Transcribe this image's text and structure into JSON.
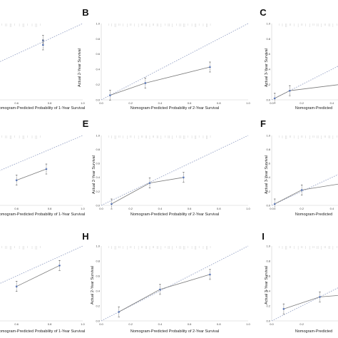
{
  "figure": {
    "background": "#ffffff",
    "colors": {
      "reference": "#5b78b8",
      "calibration": "#7a7a7a",
      "point": "#444444",
      "ideal": "#9aa6c8"
    }
  },
  "chart_data": [
    {
      "id": "A",
      "letter": "",
      "type": "scatter",
      "xlabel": "Nomogram-Predicted Probability of 1-Year Survival",
      "ylabel": "",
      "xlim": [
        0,
        1
      ],
      "ylim": [
        0,
        1
      ],
      "x_ticks": [
        0.6,
        0.8,
        1.0
      ],
      "points": [
        {
          "x": 0.76,
          "y": 0.78
        },
        {
          "x": 0.76,
          "y": 0.72
        }
      ],
      "curve": [
        {
          "x": 0.76,
          "y": 0.78
        },
        {
          "x": 0.76,
          "y": 0.72
        }
      ]
    },
    {
      "id": "B",
      "letter": "B",
      "type": "scatter",
      "xlabel": "Nomogram-Predicted Probability of 2-Year Survival",
      "ylabel": "Actual 2-Year Survival",
      "xlim": [
        0,
        1
      ],
      "ylim": [
        0,
        1
      ],
      "x_ticks": [
        0.0,
        0.2,
        0.4,
        0.6,
        0.8,
        1.0
      ],
      "y_ticks": [
        0.0,
        0.2,
        0.4,
        0.6,
        0.8,
        1.0
      ],
      "points": [
        {
          "x": 0.06,
          "y": 0.06
        },
        {
          "x": 0.3,
          "y": 0.22
        },
        {
          "x": 0.74,
          "y": 0.43
        }
      ],
      "curve": [
        {
          "x": 0.06,
          "y": 0.06
        },
        {
          "x": 0.3,
          "y": 0.22
        },
        {
          "x": 0.74,
          "y": 0.43
        }
      ]
    },
    {
      "id": "C",
      "letter": "C",
      "type": "scatter",
      "xlabel": "Nomogram-Predicted",
      "ylabel": "Actual 3-Year Survival",
      "xlim": [
        0,
        1
      ],
      "ylim": [
        0,
        1
      ],
      "x_ticks": [
        0.0,
        0.2,
        0.4
      ],
      "y_ticks": [
        0.0,
        0.2,
        0.4,
        0.6,
        0.8,
        1.0
      ],
      "points": [
        {
          "x": 0.02,
          "y": 0.02
        },
        {
          "x": 0.12,
          "y": 0.12
        },
        {
          "x": 0.45,
          "y": 0.2
        }
      ],
      "curve": [
        {
          "x": 0.02,
          "y": 0.02
        },
        {
          "x": 0.12,
          "y": 0.12
        },
        {
          "x": 0.45,
          "y": 0.2
        }
      ]
    },
    {
      "id": "D",
      "letter": "",
      "type": "scatter",
      "xlabel": "Nomogram-Predicted Probability of 1-Year Survival",
      "ylabel": "",
      "xlim": [
        0,
        1
      ],
      "ylim": [
        0,
        1
      ],
      "x_ticks": [
        0.6,
        0.8,
        1.0
      ],
      "points": [
        {
          "x": 0.6,
          "y": 0.36
        },
        {
          "x": 0.78,
          "y": 0.52
        }
      ],
      "curve": [
        {
          "x": 0.6,
          "y": 0.36
        },
        {
          "x": 0.78,
          "y": 0.52
        }
      ]
    },
    {
      "id": "E",
      "letter": "E",
      "type": "scatter",
      "xlabel": "Nomogram-Predicted Probability of 2-Year Survival",
      "ylabel": "Actual 2-Year Survival",
      "xlim": [
        0,
        1
      ],
      "ylim": [
        0,
        1
      ],
      "x_ticks": [
        0.0,
        0.2,
        0.4,
        0.6,
        0.8,
        1.0
      ],
      "y_ticks": [
        0.0,
        0.2,
        0.4,
        0.6,
        0.8,
        1.0
      ],
      "points": [
        {
          "x": 0.07,
          "y": 0.02
        },
        {
          "x": 0.33,
          "y": 0.32
        },
        {
          "x": 0.56,
          "y": 0.4
        }
      ],
      "curve": [
        {
          "x": 0.07,
          "y": 0.02
        },
        {
          "x": 0.33,
          "y": 0.32
        },
        {
          "x": 0.56,
          "y": 0.4
        }
      ]
    },
    {
      "id": "F",
      "letter": "F",
      "type": "scatter",
      "xlabel": "Nomogram-Predicted",
      "ylabel": "Actual 3-Year Survival",
      "xlim": [
        0,
        1
      ],
      "ylim": [
        0,
        1
      ],
      "x_ticks": [
        0.0,
        0.2,
        0.4
      ],
      "y_ticks": [
        0.0,
        0.2,
        0.4,
        0.6,
        0.8,
        1.0
      ],
      "points": [
        {
          "x": 0.02,
          "y": 0.02
        },
        {
          "x": 0.2,
          "y": 0.22
        },
        {
          "x": 0.72,
          "y": 0.4
        }
      ],
      "curve": [
        {
          "x": 0.02,
          "y": 0.02
        },
        {
          "x": 0.2,
          "y": 0.22
        },
        {
          "x": 0.72,
          "y": 0.4
        }
      ]
    },
    {
      "id": "G",
      "letter": "",
      "type": "scatter",
      "xlabel": "Nomogram-Predicted Probability of 1-Year Survival",
      "ylabel": "",
      "xlim": [
        0,
        1
      ],
      "ylim": [
        0,
        1
      ],
      "x_ticks": [
        0.6,
        0.8,
        1.0
      ],
      "points": [
        {
          "x": 0.6,
          "y": 0.46
        },
        {
          "x": 0.86,
          "y": 0.74
        }
      ],
      "curve": [
        {
          "x": 0.6,
          "y": 0.46
        },
        {
          "x": 0.86,
          "y": 0.74
        }
      ]
    },
    {
      "id": "H",
      "letter": "H",
      "type": "scatter",
      "xlabel": "Nomogram-Predicted Probability of 2-Year Survival",
      "ylabel": "Actual 2-Year Survival",
      "xlim": [
        0,
        1
      ],
      "ylim": [
        0,
        1
      ],
      "x_ticks": [
        0.0,
        0.2,
        0.4,
        0.6,
        0.8,
        1.0
      ],
      "y_ticks": [
        0.0,
        0.2,
        0.4,
        0.6,
        0.8,
        1.0
      ],
      "points": [
        {
          "x": 0.12,
          "y": 0.12
        },
        {
          "x": 0.4,
          "y": 0.42
        },
        {
          "x": 0.74,
          "y": 0.62
        }
      ],
      "curve": [
        {
          "x": 0.12,
          "y": 0.12
        },
        {
          "x": 0.4,
          "y": 0.42
        },
        {
          "x": 0.74,
          "y": 0.62
        }
      ]
    },
    {
      "id": "I",
      "letter": "I",
      "type": "scatter",
      "xlabel": "Nomogram-Predicted",
      "ylabel": "Actual 3-Year Survival",
      "xlim": [
        0,
        1
      ],
      "ylim": [
        0,
        1
      ],
      "x_ticks": [
        0.0,
        0.2
      ],
      "y_ticks": [
        0.0,
        0.2,
        0.4,
        0.6,
        0.8,
        1.0
      ],
      "points": [
        {
          "x": 0.08,
          "y": 0.16
        },
        {
          "x": 0.32,
          "y": 0.32
        },
        {
          "x": 0.95,
          "y": 0.42
        }
      ],
      "curve": [
        {
          "x": 0.08,
          "y": 0.16
        },
        {
          "x": 0.32,
          "y": 0.32
        },
        {
          "x": 0.95,
          "y": 0.42
        }
      ]
    }
  ]
}
